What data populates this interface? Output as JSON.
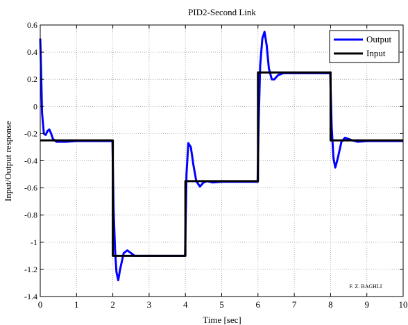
{
  "chart_data": {
    "type": "line",
    "title": "PID2-Second Link",
    "xlabel": "Time [sec]",
    "ylabel": "Input/Output response",
    "xlim": [
      0,
      10
    ],
    "ylim": [
      -1.4,
      0.6
    ],
    "x_ticks": [
      0,
      1,
      2,
      3,
      4,
      5,
      6,
      7,
      8,
      9,
      10
    ],
    "y_ticks": [
      -1.4,
      -1.2,
      -1,
      -0.8,
      -0.6,
      -0.4,
      -0.2,
      0,
      0.2,
      0.4,
      0.6
    ],
    "x_tick_labels": [
      "0",
      "1",
      "2",
      "3",
      "4",
      "5",
      "6",
      "7",
      "8",
      "9",
      "10"
    ],
    "y_tick_labels": [
      "-1.4",
      "-1.2",
      "-1",
      "-0.8",
      "-0.6",
      "-0.4",
      "-0.2",
      "0",
      "0.2",
      "0.4",
      "0.6"
    ],
    "grid": true,
    "legend_position": "top-right",
    "annotation": "F. Z. BAGHLI",
    "series": [
      {
        "name": "Output",
        "color": "#0000ff",
        "x": [
          0,
          0.02,
          0.05,
          0.1,
          0.15,
          0.2,
          0.25,
          0.3,
          0.35,
          0.45,
          0.55,
          0.7,
          1.0,
          1.5,
          1.99,
          2.02,
          2.06,
          2.1,
          2.15,
          2.2,
          2.3,
          2.4,
          2.5,
          2.6,
          2.75,
          3.0,
          3.5,
          3.99,
          4.03,
          4.08,
          4.15,
          4.22,
          4.3,
          4.4,
          4.5,
          4.6,
          4.75,
          5.0,
          5.5,
          5.99,
          6.02,
          6.06,
          6.12,
          6.18,
          6.24,
          6.3,
          6.38,
          6.45,
          6.55,
          6.7,
          6.9,
          7.5,
          7.99,
          8.03,
          8.08,
          8.13,
          8.2,
          8.3,
          8.4,
          8.5,
          8.6,
          8.75,
          9.0,
          10.0
        ],
        "y": [
          0.5,
          0.3,
          -0.05,
          -0.2,
          -0.21,
          -0.18,
          -0.17,
          -0.2,
          -0.24,
          -0.26,
          -0.26,
          -0.26,
          -0.255,
          -0.255,
          -0.255,
          -0.75,
          -1.05,
          -1.22,
          -1.28,
          -1.2,
          -1.08,
          -1.06,
          -1.08,
          -1.1,
          -1.1,
          -1.1,
          -1.1,
          -1.1,
          -0.5,
          -0.27,
          -0.3,
          -0.43,
          -0.55,
          -0.59,
          -0.56,
          -0.55,
          -0.56,
          -0.555,
          -0.555,
          -0.555,
          -0.1,
          0.3,
          0.5,
          0.55,
          0.45,
          0.28,
          0.2,
          0.2,
          0.23,
          0.245,
          0.245,
          0.245,
          0.245,
          -0.15,
          -0.38,
          -0.45,
          -0.38,
          -0.26,
          -0.23,
          -0.24,
          -0.25,
          -0.26,
          -0.255,
          -0.255
        ]
      },
      {
        "name": "Input",
        "color": "#000000",
        "x": [
          0,
          2,
          2,
          4,
          4,
          6,
          6,
          8,
          8,
          10
        ],
        "y": [
          -0.25,
          -0.25,
          -1.1,
          -1.1,
          -0.55,
          -0.55,
          0.25,
          0.25,
          -0.25,
          -0.25
        ]
      }
    ]
  }
}
